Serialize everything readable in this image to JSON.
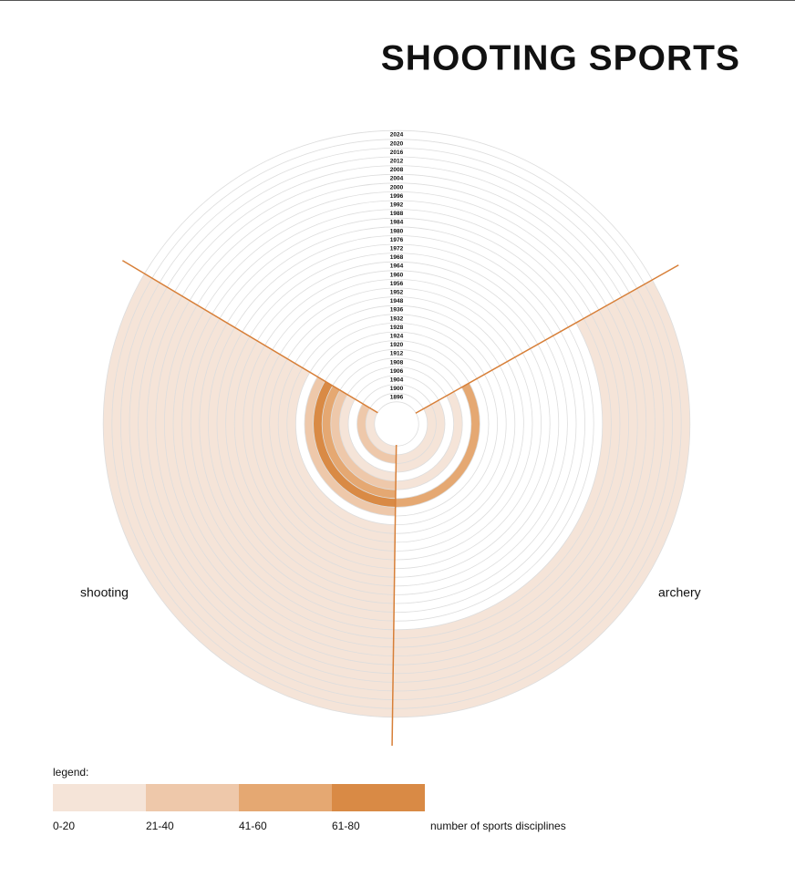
{
  "chart_data": {
    "type": "radial-rings",
    "title": "SHOOTING SPORTS",
    "categories": [
      "1896",
      "1900",
      "1904",
      "1906",
      "1908",
      "1912",
      "1920",
      "1924",
      "1928",
      "1932",
      "1936",
      "1948",
      "1952",
      "1956",
      "1960",
      "1964",
      "1968",
      "1972",
      "1976",
      "1980",
      "1984",
      "1988",
      "1992",
      "1996",
      "2000",
      "2004",
      "2008",
      "2012",
      "2016",
      "2020",
      "2024"
    ],
    "series": [
      {
        "name": "shooting",
        "values": [
          10,
          30,
          null,
          10,
          30,
          50,
          70,
          30,
          null,
          10,
          10,
          10,
          10,
          10,
          10,
          10,
          10,
          10,
          10,
          10,
          10,
          10,
          10,
          10,
          10,
          10,
          10,
          10,
          10,
          10,
          10
        ]
      },
      {
        "name": "archery",
        "values": [
          null,
          10,
          10,
          null,
          10,
          null,
          50,
          null,
          null,
          null,
          null,
          null,
          null,
          null,
          null,
          null,
          null,
          null,
          null,
          null,
          null,
          10,
          10,
          10,
          10,
          10,
          10,
          10,
          10,
          10,
          10
        ]
      }
    ],
    "legend": {
      "title": "legend:",
      "caption": "number of sports disciplines",
      "bins": [
        {
          "min": 0,
          "max": 20,
          "label": "0-20",
          "color": "#f5e4d8"
        },
        {
          "min": 21,
          "max": 40,
          "label": "21-40",
          "color": "#eec8aa"
        },
        {
          "min": 41,
          "max": 60,
          "label": "41-60",
          "color": "#e5a872"
        },
        {
          "min": 61,
          "max": 80,
          "label": "61-80",
          "color": "#d98a45"
        }
      ]
    }
  }
}
